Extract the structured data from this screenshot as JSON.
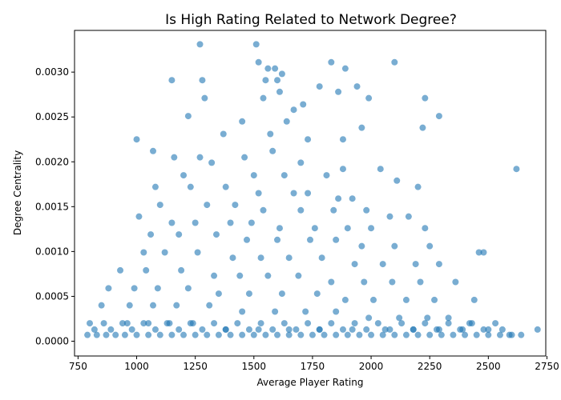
{
  "chart_data": {
    "type": "scatter",
    "title": "Is High Rating Related to Network Degree?",
    "xlabel": "Average Player Rating",
    "ylabel": "Degree Centrality",
    "xlim": [
      735,
      2745
    ],
    "ylim": [
      -0.000165,
      0.003465
    ],
    "x_ticks": [
      750,
      1000,
      1250,
      1500,
      1750,
      2000,
      2250,
      2500,
      2750
    ],
    "x_tick_labels": [
      "750",
      "1000",
      "1250",
      "1500",
      "1750",
      "2000",
      "2250",
      "2500",
      "2750"
    ],
    "y_ticks": [
      0,
      0.0005,
      0.001,
      0.0015,
      0.002,
      0.0025,
      0.003
    ],
    "y_tick_labels": [
      "0.0000",
      "0.0005",
      "0.0010",
      "0.0015",
      "0.0020",
      "0.0025",
      "0.0030"
    ],
    "grid": false,
    "legend": "none",
    "marker_color": "#1f77b4",
    "marker_alpha": 0.6,
    "series": [
      {
        "x": [
          1270,
          1510,
          1520,
          2100,
          1560,
          1830,
          1550,
          1590,
          1600,
          1620,
          1890,
          1940,
          2230,
          1290,
          2290,
          1150,
          1280,
          1780,
          1860,
          1540,
          1610,
          1670,
          1710,
          1990,
          2220,
          1220,
          1450,
          1640,
          1960,
          1570,
          1370,
          1730,
          1880,
          1000,
          1070,
          1160,
          1270,
          1320,
          1460,
          1580,
          1700,
          1880,
          2040,
          1200,
          1500,
          1630,
          1810,
          2110,
          2200,
          1080,
          1230,
          1380,
          1520,
          1670,
          1730,
          1860,
          1920,
          1100,
          1300,
          1420,
          1540,
          1700,
          1840,
          1980,
          2080,
          2160,
          1010,
          1150,
          1250,
          1400,
          1490,
          1610,
          1760,
          1900,
          2000,
          2230,
          2480,
          1060,
          1180,
          1340,
          1470,
          1600,
          1740,
          1850,
          1960,
          2100,
          2250,
          2460,
          2620,
          1030,
          1120,
          1260,
          1410,
          1530,
          1650,
          1790,
          1930,
          2050,
          2190,
          2290,
          930,
          1040,
          1190,
          1330,
          1440,
          1560,
          1690,
          1830,
          1970,
          2090,
          2210,
          2360,
          2440,
          990,
          1090,
          1220,
          1350,
          1480,
          1620,
          1770,
          1890,
          2010,
          2150,
          2270,
          880,
          970,
          1070,
          1170,
          1310,
          1450,
          1590,
          1720,
          1850,
          1990,
          2120,
          2240,
          2330,
          2420,
          850,
          960,
          1050,
          1140,
          1240,
          1380,
          1520,
          1650,
          1780,
          1920,
          2060,
          2180,
          2290,
          2390,
          2500,
          790,
          830,
          870,
          910,
          950,
          1000,
          1050,
          1100,
          1150,
          1200,
          1250,
          1300,
          1350,
          1400,
          1450,
          1500,
          1550,
          1600,
          1650,
          1700,
          1750,
          1800,
          1850,
          1900,
          1950,
          2000,
          2050,
          2100,
          2150,
          2200,
          2250,
          2300,
          2350,
          2400,
          2450,
          2500,
          2550,
          2600,
          2640,
          2710,
          820,
          890,
          980,
          1080,
          1180,
          1280,
          1380,
          1480,
          1580,
          1680,
          1780,
          1880,
          1980,
          2080,
          2180,
          2280,
          2380,
          2480,
          2560,
          800,
          860,
          940,
          1030,
          1130,
          1230,
          1330,
          1430,
          1530,
          1630,
          1730,
          1830,
          1930,
          2030,
          2130,
          2230,
          2330,
          2430,
          2530,
          2590
        ],
        "y": [
          0.00331,
          0.00331,
          0.00311,
          0.00311,
          0.00304,
          0.00311,
          0.00291,
          0.00304,
          0.00291,
          0.00298,
          0.00304,
          0.00284,
          0.00271,
          0.00271,
          0.00251,
          0.00291,
          0.00291,
          0.00284,
          0.00278,
          0.00271,
          0.00278,
          0.00258,
          0.00264,
          0.00271,
          0.00238,
          0.00251,
          0.00245,
          0.00245,
          0.00238,
          0.00231,
          0.00231,
          0.00225,
          0.00225,
          0.00225,
          0.00212,
          0.00205,
          0.00205,
          0.00199,
          0.00205,
          0.00212,
          0.00199,
          0.00192,
          0.00192,
          0.00185,
          0.00185,
          0.00185,
          0.00185,
          0.00179,
          0.00172,
          0.00172,
          0.00172,
          0.00172,
          0.00165,
          0.00165,
          0.00165,
          0.00159,
          0.00159,
          0.00152,
          0.00152,
          0.00152,
          0.00146,
          0.00146,
          0.00146,
          0.00146,
          0.00139,
          0.00139,
          0.00139,
          0.00132,
          0.00132,
          0.00132,
          0.00132,
          0.00126,
          0.00126,
          0.00126,
          0.00126,
          0.00126,
          0.00099,
          0.00119,
          0.00119,
          0.00119,
          0.00113,
          0.00113,
          0.00113,
          0.00113,
          0.00106,
          0.00106,
          0.00106,
          0.00099,
          0.00192,
          0.00099,
          0.00099,
          0.00099,
          0.00093,
          0.00093,
          0.00093,
          0.00093,
          0.00086,
          0.00086,
          0.00086,
          0.00086,
          0.00079,
          0.00079,
          0.00079,
          0.00073,
          0.00073,
          0.00073,
          0.00073,
          0.00066,
          0.00066,
          0.00066,
          0.00066,
          0.00066,
          0.00046,
          0.00059,
          0.00059,
          0.00059,
          0.00053,
          0.00053,
          0.00053,
          0.00053,
          0.00046,
          0.00046,
          0.00046,
          0.00046,
          0.00059,
          0.0004,
          0.0004,
          0.0004,
          0.0004,
          0.00033,
          0.00033,
          0.00033,
          0.00033,
          0.00026,
          0.00026,
          0.00026,
          0.00026,
          0.0002,
          0.0004,
          0.0002,
          0.0002,
          0.0002,
          0.0002,
          0.00013,
          0.00013,
          0.00013,
          0.00013,
          0.00013,
          0.00013,
          0.00013,
          0.00013,
          0.00013,
          0.00013,
          7e-05,
          7e-05,
          7e-05,
          7e-05,
          7e-05,
          7e-05,
          7e-05,
          7e-05,
          7e-05,
          7e-05,
          7e-05,
          7e-05,
          7e-05,
          7e-05,
          7e-05,
          7e-05,
          7e-05,
          7e-05,
          7e-05,
          7e-05,
          7e-05,
          7e-05,
          7e-05,
          7e-05,
          7e-05,
          7e-05,
          7e-05,
          7e-05,
          7e-05,
          7e-05,
          7e-05,
          7e-05,
          7e-05,
          7e-05,
          7e-05,
          7e-05,
          7e-05,
          7e-05,
          7e-05,
          0.00013,
          0.00013,
          0.00013,
          0.00013,
          0.00013,
          0.00013,
          0.00013,
          0.00013,
          0.00013,
          0.00013,
          0.00013,
          0.00013,
          0.00013,
          0.00013,
          0.00013,
          0.00013,
          0.00013,
          0.00013,
          0.00013,
          0.00013,
          0.0002,
          0.0002,
          0.0002,
          0.0002,
          0.0002,
          0.0002,
          0.0002,
          0.0002,
          0.0002,
          0.0002,
          0.0002,
          0.0002,
          0.0002,
          0.0002,
          0.0002,
          0.0002,
          0.0002,
          0.0002,
          0.0002,
          7e-05
        ]
      }
    ]
  }
}
